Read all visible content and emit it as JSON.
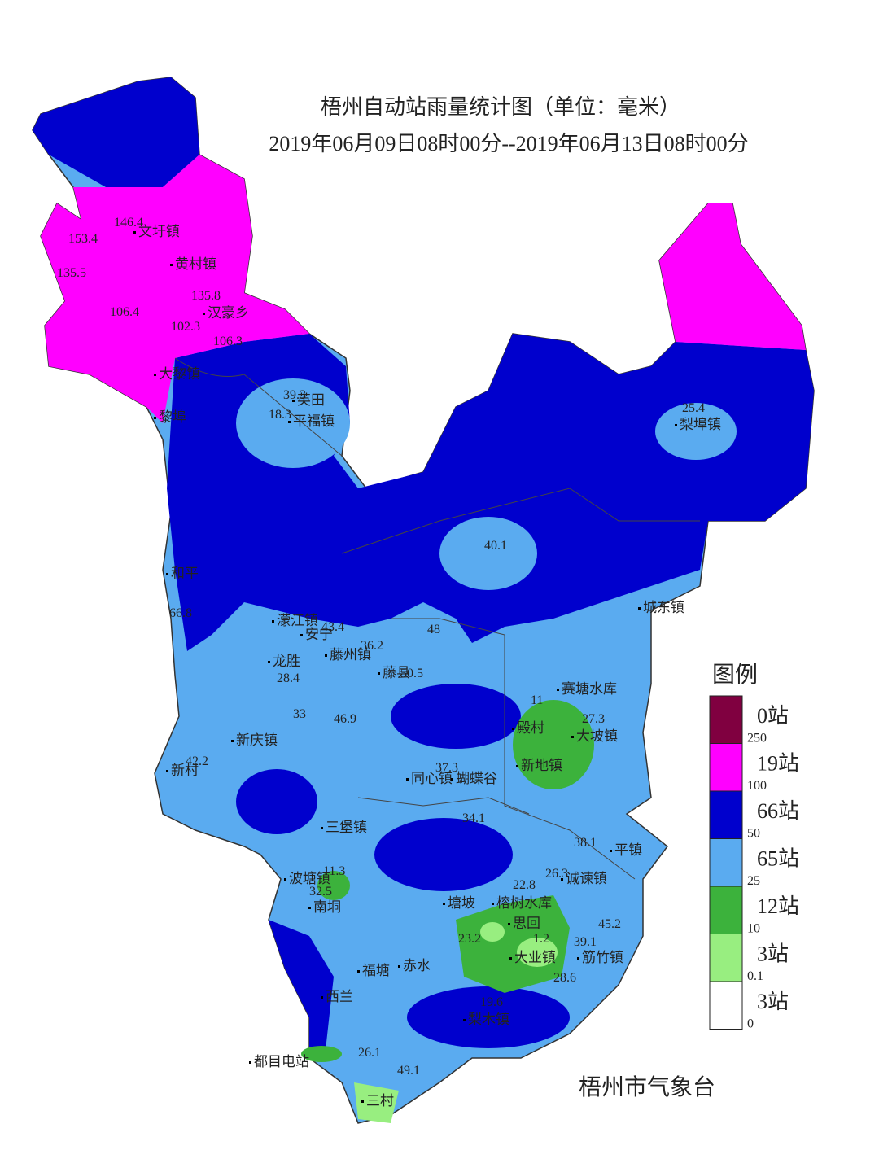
{
  "header": {
    "title": "梧州自动站雨量统计图（单位：毫米）",
    "subtitle": "2019年06月09日08时00分--2019年06月13日08时00分"
  },
  "legend": {
    "title": "图例",
    "items": [
      {
        "label": "0站",
        "color": "#800040"
      },
      {
        "label": "19站",
        "color": "#ff00ff"
      },
      {
        "label": "66站",
        "color": "#0000cd"
      },
      {
        "label": "65站",
        "color": "#5aabf0"
      },
      {
        "label": "12站",
        "color": "#3cb23c"
      },
      {
        "label": "3站",
        "color": "#98ee80"
      },
      {
        "label": "3站",
        "color": "#ffffff"
      }
    ],
    "breaks": [
      250,
      100,
      50,
      25,
      10,
      0.1,
      0
    ]
  },
  "places": [
    "文圩镇",
    "黄村镇",
    "汉豪乡",
    "大黎镇",
    "黎埠",
    "英田",
    "平福镇",
    "濛江镇",
    "安宁",
    "藤州镇",
    "藤县",
    "龙胜",
    "新庆镇",
    "和平",
    "新村",
    "三堡镇",
    "波塘镇",
    "南垌",
    "福塘",
    "赤水",
    "西兰",
    "都目电站",
    "三村",
    "梨埠镇",
    "城东镇",
    "赛塘水库",
    "殿村",
    "大坡镇",
    "新地镇",
    "同心镇",
    "蝴蝶谷",
    "平镇",
    "诚谏镇",
    "榕树水库",
    "思回",
    "大业镇",
    "筋竹镇",
    "梨木镇",
    "塘坡"
  ],
  "readings": [
    146.4,
    153.4,
    135.5,
    106.4,
    102.3,
    106.3,
    135.8,
    39.3,
    18.3,
    25.4,
    40.1,
    43.4,
    48,
    36.2,
    28.4,
    50.5,
    46.9,
    33,
    42.2,
    66.8,
    11,
    27.3,
    38.1,
    11.3,
    32.5,
    22.8,
    26.3,
    45.2,
    39.1,
    28.6,
    19.6,
    23.2,
    26.1,
    49.1,
    1.2,
    34.1,
    37.3
  ],
  "credit": "梧州市气象台"
}
